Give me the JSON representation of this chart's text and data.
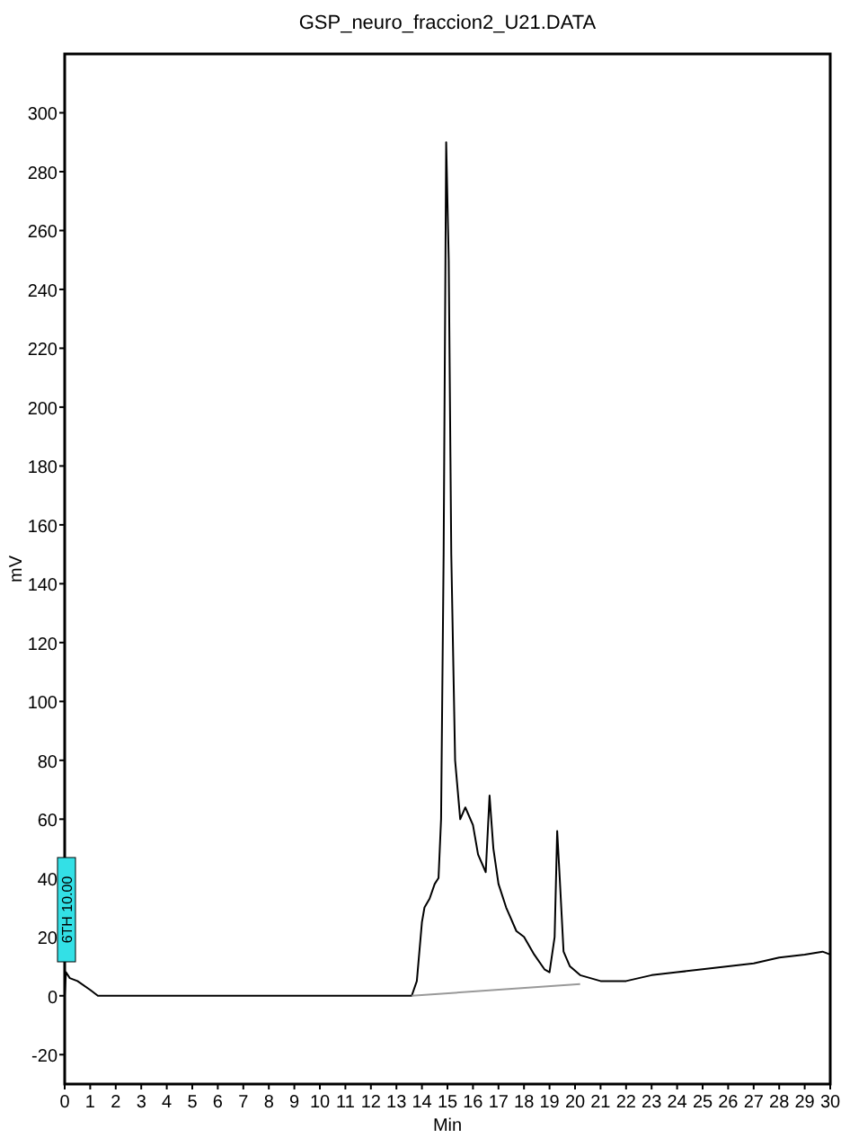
{
  "chart_data": {
    "type": "line",
    "title": "GSP_neuro_fraccion2_U21.DATA",
    "xlabel": "Min",
    "ylabel": "mV",
    "xlim": [
      0,
      30
    ],
    "ylim": [
      -30,
      320
    ],
    "xticks": [
      0,
      1,
      2,
      3,
      4,
      5,
      6,
      7,
      8,
      9,
      10,
      11,
      12,
      13,
      14,
      15,
      16,
      17,
      18,
      19,
      20,
      21,
      22,
      23,
      24,
      25,
      26,
      27,
      28,
      29,
      30
    ],
    "yticks": [
      -20,
      0,
      20,
      40,
      60,
      80,
      100,
      120,
      140,
      160,
      180,
      200,
      220,
      240,
      260,
      280,
      300
    ],
    "grid": false,
    "marker": "none",
    "line_style": "solid",
    "series": [
      {
        "color": "#000000",
        "x": [
          0,
          0.05,
          0.2,
          0.5,
          1,
          1.3,
          13.6,
          13.8,
          14,
          14.1,
          14.3,
          14.5,
          14.65,
          14.75,
          14.85,
          14.95,
          15.05,
          15.15,
          15.3,
          15.5,
          15.7,
          15.8,
          16,
          16.2,
          16.5,
          16.65,
          16.8,
          17,
          17.3,
          17.7,
          18,
          18.4,
          18.8,
          19,
          19.2,
          19.3,
          19.4,
          19.55,
          19.8,
          20.2,
          21,
          22,
          23,
          24,
          25,
          26,
          27,
          28,
          29,
          29.7,
          30
        ],
        "values": [
          0,
          8,
          6,
          5,
          2,
          0,
          0,
          5,
          25,
          30,
          33,
          38,
          40,
          60,
          150,
          290,
          250,
          150,
          80,
          60,
          64,
          62,
          58,
          48,
          42,
          68,
          50,
          38,
          30,
          22,
          20,
          14,
          9,
          8,
          20,
          56,
          40,
          15,
          10,
          7,
          5,
          5,
          7,
          8,
          9,
          10,
          11,
          13,
          14,
          15,
          14
        ]
      },
      {
        "color": "#999999",
        "x": [
          13.6,
          20.2
        ],
        "values": [
          0,
          4
        ]
      }
    ],
    "annotations": [
      "6TH 10.00"
    ]
  }
}
